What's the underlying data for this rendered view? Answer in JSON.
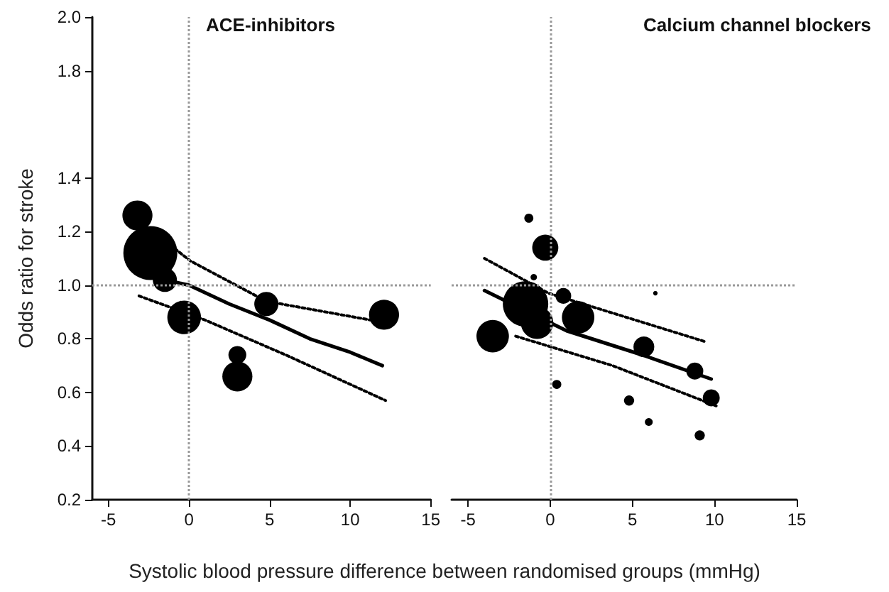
{
  "chart_data": [
    {
      "type": "bubble",
      "title": "ACE-inhibitors",
      "ylabel": "Odds ratio for stroke",
      "xlabel": "Systolic blood pressure difference between randomised groups (mmHg)",
      "xlim": [
        -6,
        15
      ],
      "xticks": [
        -5,
        0,
        5,
        10,
        15
      ],
      "ylim": [
        0.2,
        2.0
      ],
      "yticks": [
        {
          "value": 0.2,
          "label": "0.2"
        },
        {
          "value": 0.4,
          "label": "0.4"
        },
        {
          "value": 0.6,
          "label": "0.6"
        },
        {
          "value": 0.8,
          "label": "0.8"
        },
        {
          "value": 1.0,
          "label": "1.0"
        },
        {
          "value": 1.2,
          "label": "1.2"
        },
        {
          "value": 1.4,
          "label": "1.4"
        },
        {
          "value": 1.8,
          "label": "1.8"
        },
        {
          "value": 2.0,
          "label": "2.0"
        }
      ],
      "ref_lines": [
        {
          "axis": "x",
          "value": 0,
          "color": "#999999",
          "line_style": "dotted"
        },
        {
          "axis": "y",
          "value": 1,
          "color": "#999999",
          "line_style": "dotted"
        }
      ],
      "series": [
        {
          "type": "bubble",
          "color": "#000000",
          "x": [
            -3.2,
            -2.4,
            -1.5,
            -0.3,
            4.8,
            3.0,
            3.0,
            12.1
          ],
          "values": [
            1.26,
            1.12,
            1.02,
            0.88,
            0.93,
            0.74,
            0.66,
            0.89
          ],
          "sizes": [
            0.31,
            1,
            0.2,
            0.39,
            0.2,
            0.11,
            0.31,
            0.31
          ]
        },
        {
          "type": "line",
          "color": "#000000",
          "line_style": "solid",
          "marker": "none",
          "x": [
            -1.5,
            0,
            2.5,
            5,
            7.5,
            10,
            12
          ],
          "values": [
            1.02,
            1.0,
            0.93,
            0.87,
            0.8,
            0.75,
            0.7
          ]
        },
        {
          "type": "line",
          "color": "#000000",
          "line_style": "dotted",
          "marker": "none",
          "x": [
            -3.1,
            0.1,
            4.8,
            12.2
          ],
          "values": [
            1.24,
            1.09,
            0.94,
            0.86
          ]
        },
        {
          "type": "line",
          "color": "#000000",
          "line_style": "dotted",
          "marker": "none",
          "x": [
            -3.1,
            1,
            6,
            12.2
          ],
          "values": [
            0.96,
            0.87,
            0.74,
            0.57
          ]
        }
      ]
    },
    {
      "type": "bubble",
      "title": "Calcium channel blockers",
      "tick_labels": "x",
      "xlim": [
        -6,
        15
      ],
      "xticks": [
        -5,
        0,
        5,
        10,
        15
      ],
      "ylim": [
        0.2,
        2.0
      ],
      "ref_lines": [
        {
          "axis": "x",
          "value": 0,
          "color": "#999999",
          "line_style": "dotted"
        },
        {
          "axis": "y",
          "value": 1,
          "color": "#999999",
          "line_style": "dotted"
        }
      ],
      "series": [
        {
          "type": "bubble",
          "color": "#000000",
          "x": [
            -1.3,
            -0.3,
            -1.0,
            0.8,
            6.4,
            -1.5,
            -0.8,
            1.7,
            -3.5,
            5.7,
            8.8,
            9.8,
            0.4,
            4.8,
            6.0,
            9.1
          ],
          "values": [
            1.25,
            1.14,
            1.03,
            0.96,
            0.97,
            0.93,
            0.86,
            0.88,
            0.81,
            0.77,
            0.68,
            0.58,
            0.63,
            0.57,
            0.49,
            0.44
          ],
          "sizes": [
            0.04,
            0.33,
            0.02,
            0.12,
            0.01,
            1,
            0.51,
            0.51,
            0.51,
            0.21,
            0.14,
            0.14,
            0.04,
            0.05,
            0.03,
            0.05
          ]
        },
        {
          "type": "line",
          "color": "#000000",
          "line_style": "solid",
          "marker": "none",
          "x": [
            -4.0,
            1.0,
            5.6,
            9.8
          ],
          "values": [
            0.98,
            0.83,
            0.74,
            0.65
          ]
        },
        {
          "type": "line",
          "color": "#000000",
          "line_style": "dotted",
          "marker": "none",
          "x": [
            -4.0,
            -0.1,
            9.4
          ],
          "values": [
            1.1,
            0.97,
            0.79
          ]
        },
        {
          "type": "line",
          "color": "#000000",
          "line_style": "dotted",
          "marker": "none",
          "x": [
            -2.1,
            3.8,
            10.1
          ],
          "values": [
            0.81,
            0.7,
            0.55
          ]
        }
      ]
    }
  ]
}
